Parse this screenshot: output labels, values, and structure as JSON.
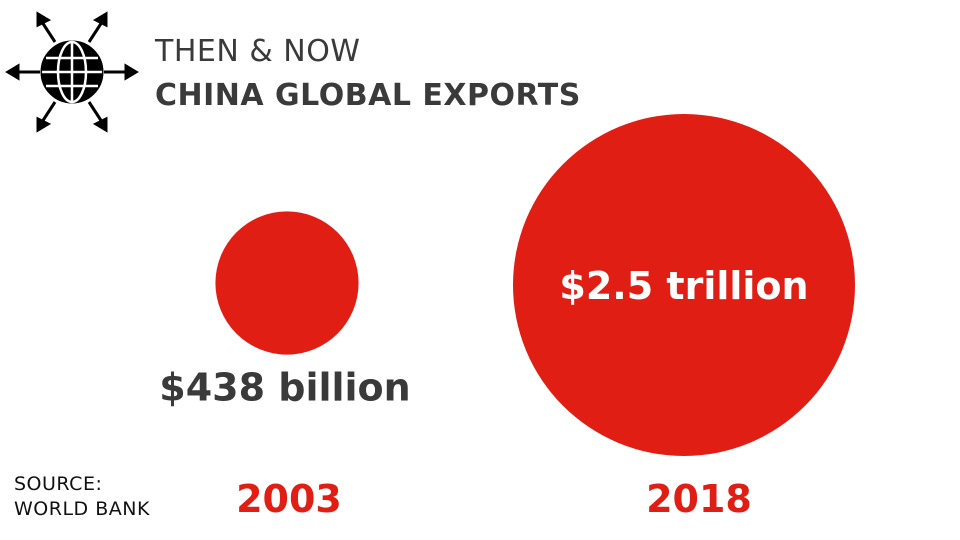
{
  "header": {
    "line1": "THEN & NOW",
    "line2": "CHINA GLOBAL EXPORTS",
    "icon": "globe-export-arrows-icon"
  },
  "source": {
    "line1": "SOURCE:",
    "line2": "WORLD BANK"
  },
  "colors": {
    "bubble": "#e01e14",
    "text": "#3a3a3a",
    "year": "#e01e14"
  },
  "chart_data": {
    "type": "bubble",
    "title": "CHINA GLOBAL EXPORTS",
    "categories": [
      "2003",
      "2018"
    ],
    "values": [
      438,
      2500
    ],
    "unit": "billion USD",
    "labels": [
      "$438 billion",
      "$2.5 trillion"
    ]
  }
}
